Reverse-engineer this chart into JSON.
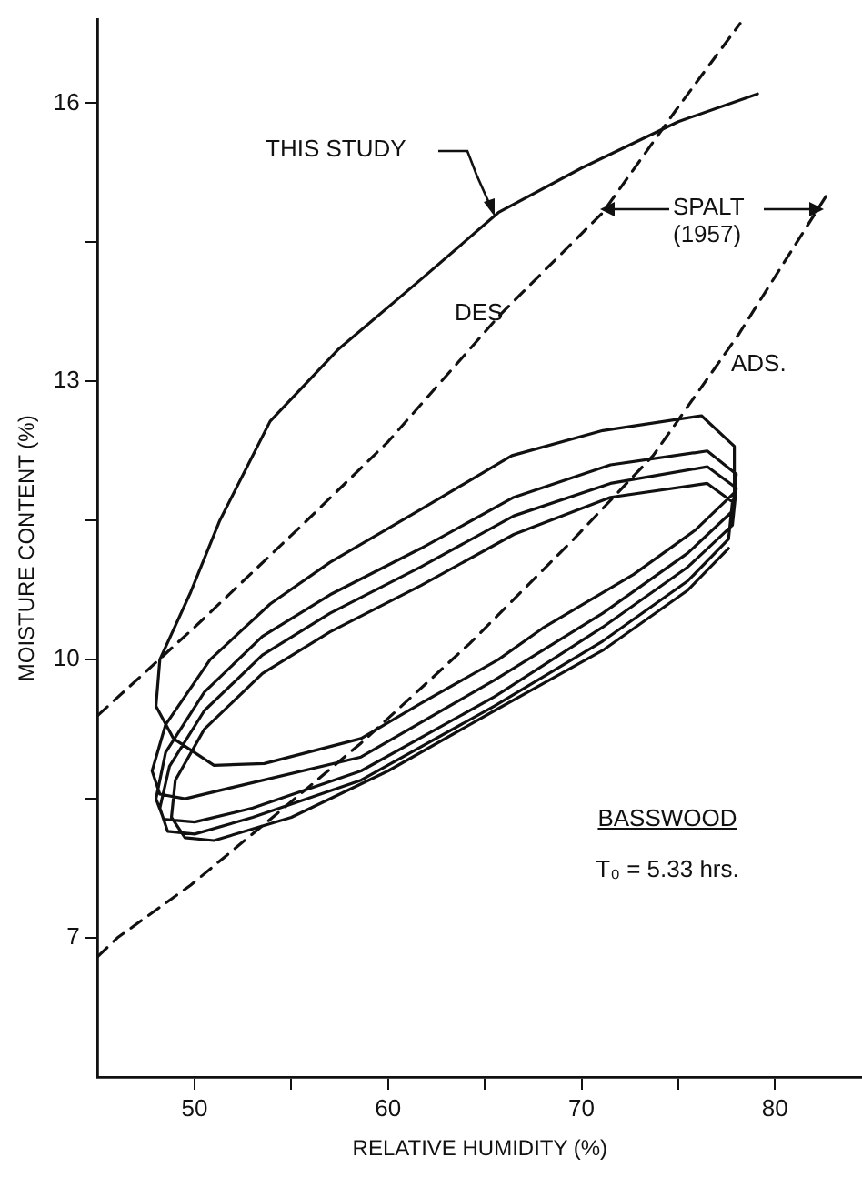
{
  "chart_data": {
    "type": "line",
    "xlabel": "RELATIVE HUMIDITY (%)",
    "ylabel": "MOISTURE CONTENT (%)",
    "xlim": [
      45,
      84.5
    ],
    "ylim": [
      5.5,
      16.9
    ],
    "xticks": [
      50,
      {
        "value": 55,
        "label": null
      },
      60,
      {
        "value": 65,
        "label": null
      },
      70,
      {
        "value": 75,
        "label": null
      },
      80
    ],
    "yticks": [
      7,
      {
        "value": 8.5,
        "label": null
      },
      10,
      {
        "value": 11.5,
        "label": null
      },
      13,
      {
        "value": 14.5,
        "label": null
      },
      16
    ],
    "grid": false,
    "legend": false,
    "marker": "none",
    "series": [
      {
        "color": "#111111",
        "line_style": "solid",
        "x": [
          79.1,
          75,
          70,
          65.7,
          61.7,
          57.4,
          53.9,
          51.3,
          49.8,
          48.2,
          48.0,
          48.9,
          51.0,
          53.6,
          58.6,
          61.7,
          65.7,
          68.0,
          72.7,
          75.9,
          77.9,
          77.9,
          76.2,
          71.1,
          66.4,
          61.7,
          57.0,
          53.9,
          50.8,
          48.5,
          47.8,
          48.2,
          49.5,
          52.3,
          58.6,
          65.5,
          71.1,
          75.5,
          77.8,
          78.0,
          76.5,
          71.5,
          66.5,
          61.7,
          57.0,
          53.5,
          50.5,
          48.5,
          48.0,
          48.4,
          50.0,
          53.0,
          58.6,
          65.5,
          71.1,
          75.5,
          77.8,
          78.0,
          76.5,
          71.5,
          66.5,
          61.7,
          57.0,
          53.5,
          50.5,
          48.7,
          48.2,
          48.6,
          50.0,
          53.0,
          58.6,
          65.5,
          71.1,
          75.5,
          77.6,
          77.8,
          76.5,
          71.5,
          66.5,
          61.7,
          57.0,
          53.5,
          50.5,
          49.0,
          48.8,
          49.5,
          51,
          55,
          60,
          65.5,
          71.1,
          75.5,
          77.6
        ],
        "values": [
          16.1,
          15.8,
          15.3,
          14.82,
          14.1,
          13.34,
          12.57,
          11.5,
          10.73,
          10.0,
          9.5,
          9.15,
          8.86,
          8.88,
          9.15,
          9.53,
          10.0,
          10.34,
          10.92,
          11.4,
          11.8,
          12.3,
          12.63,
          12.47,
          12.2,
          11.62,
          11.05,
          10.6,
          10.0,
          9.3,
          8.8,
          8.55,
          8.5,
          8.64,
          8.95,
          9.78,
          10.5,
          11.15,
          11.6,
          12.0,
          12.25,
          12.1,
          11.75,
          11.2,
          10.7,
          10.25,
          9.65,
          9.0,
          8.5,
          8.28,
          8.25,
          8.4,
          8.8,
          9.6,
          10.35,
          11.0,
          11.45,
          11.85,
          12.08,
          11.9,
          11.55,
          11.0,
          10.5,
          10.05,
          9.45,
          8.85,
          8.4,
          8.15,
          8.12,
          8.3,
          8.7,
          9.5,
          10.2,
          10.85,
          11.3,
          11.7,
          11.9,
          11.75,
          11.35,
          10.8,
          10.3,
          9.85,
          9.25,
          8.7,
          8.3,
          8.08,
          8.05,
          8.3,
          8.8,
          9.45,
          10.1,
          10.75,
          11.2
        ]
      },
      {
        "color": "#111111",
        "line_style": "dashed",
        "x": [
          45,
          50,
          55.75,
          60,
          65.8,
          71.1,
          74.9,
          78.2
        ],
        "values": [
          9.4,
          10.35,
          11.49,
          12.35,
          13.72,
          14.82,
          15.93,
          16.86
        ]
      },
      {
        "color": "#111111",
        "line_style": "dashed",
        "x": [
          45,
          46,
          49.8,
          54.2,
          58.6,
          64.2,
          69.6,
          73.7,
          78.1,
          82.8
        ],
        "values": [
          6.8,
          7.0,
          7.57,
          8.33,
          9.1,
          10.17,
          11.3,
          12.2,
          13.5,
          15.05
        ]
      }
    ],
    "annotations": [
      "THIS STUDY",
      "SPALT\n(1957)",
      "DES",
      "ADS.",
      "BASSWOOD",
      "T₀ = 5.33 hrs."
    ]
  }
}
